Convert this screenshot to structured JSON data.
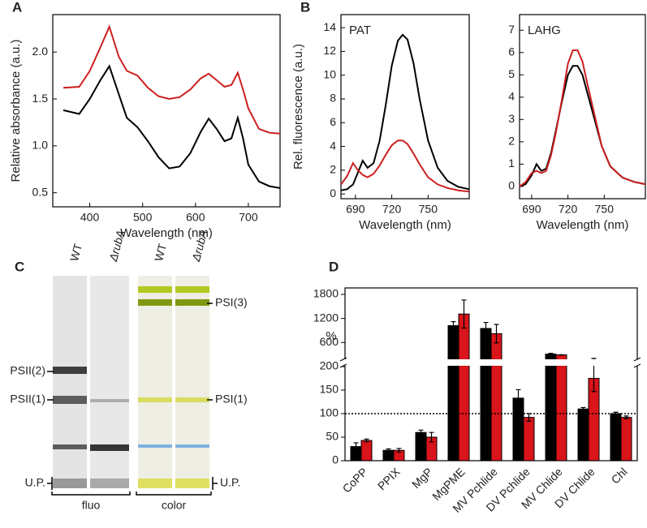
{
  "chart_data": [
    {
      "type": "line",
      "panel_label": "A",
      "x_label": "Wavelength (nm)",
      "y_label": "Relative absorbance (a.u.)",
      "x": [
        350,
        380,
        400,
        420,
        437,
        455,
        470,
        490,
        510,
        530,
        550,
        570,
        590,
        610,
        625,
        640,
        655,
        668,
        680,
        690,
        700,
        720,
        740,
        760
      ],
      "series": [
        {
          "color": "#000000",
          "values": [
            1.38,
            1.34,
            1.5,
            1.7,
            1.85,
            1.55,
            1.3,
            1.2,
            1.05,
            0.88,
            0.76,
            0.78,
            0.92,
            1.15,
            1.29,
            1.18,
            1.05,
            1.08,
            1.3,
            1.08,
            0.8,
            0.62,
            0.57,
            0.55
          ]
        },
        {
          "color": "#cc1f1f",
          "values": [
            1.62,
            1.63,
            1.8,
            2.05,
            2.27,
            1.95,
            1.8,
            1.75,
            1.62,
            1.53,
            1.5,
            1.52,
            1.6,
            1.72,
            1.77,
            1.7,
            1.63,
            1.65,
            1.78,
            1.6,
            1.4,
            1.18,
            1.14,
            1.13
          ]
        }
      ],
      "xlim": [
        330,
        760
      ],
      "xticks": [
        400,
        500,
        600,
        700
      ],
      "ylim": [
        0.35,
        2.4
      ],
      "yticks": [
        0.5,
        {
          "value": 1,
          "label": "1.0"
        },
        1.5,
        {
          "value": 2,
          "label": "2.0"
        }
      ]
    },
    {
      "type": "line",
      "panel_label": "B",
      "annotation": "PAT",
      "x_label": "Wavelength (nm)",
      "y_label": "Rel. fluorescence (a.u.)",
      "x": [
        678,
        683,
        688,
        692,
        696,
        700,
        705,
        710,
        715,
        720,
        725,
        729,
        733,
        738,
        743,
        750,
        758,
        766,
        775,
        784
      ],
      "series": [
        {
          "color": "#000000",
          "values": [
            0.3,
            0.4,
            0.8,
            1.8,
            2.8,
            2.2,
            2.6,
            4.5,
            7.5,
            10.8,
            12.9,
            13.4,
            13,
            11,
            8,
            4.5,
            2.2,
            1.1,
            0.6,
            0.4
          ]
        },
        {
          "color": "#cc1f1f",
          "values": [
            0.8,
            1.5,
            2.6,
            2.0,
            1.6,
            1.4,
            1.7,
            2.4,
            3.3,
            4.1,
            4.5,
            4.5,
            4.2,
            3.4,
            2.5,
            1.4,
            0.8,
            0.5,
            0.3,
            0.2
          ]
        }
      ],
      "xlim": [
        678,
        784
      ],
      "xticks": [
        690,
        720,
        750
      ],
      "ylim": [
        -0.4,
        15.1
      ],
      "yticks": [
        0,
        2,
        4,
        6,
        8,
        10,
        12,
        14
      ]
    },
    {
      "type": "line",
      "annotation": "LAHG",
      "x_label": "Wavelength (nm)",
      "x": [
        680,
        685,
        690,
        694,
        698,
        702,
        706,
        710,
        715,
        720,
        724,
        728,
        732,
        736,
        742,
        748,
        755,
        765,
        775,
        784
      ],
      "series": [
        {
          "color": "#000000",
          "values": [
            0,
            0.1,
            0.5,
            1.0,
            0.7,
            0.8,
            1.5,
            2.5,
            3.8,
            5.0,
            5.4,
            5.4,
            5.0,
            4.2,
            3.0,
            1.8,
            0.9,
            0.4,
            0.2,
            0.1
          ]
        },
        {
          "color": "#cc1f1f",
          "values": [
            0,
            0.2,
            0.6,
            0.7,
            0.6,
            0.7,
            1.4,
            2.4,
            3.9,
            5.5,
            6.1,
            6.1,
            5.6,
            4.6,
            3.2,
            1.8,
            0.9,
            0.4,
            0.2,
            0.1
          ]
        }
      ],
      "xlim": [
        680,
        784
      ],
      "xticks": [
        690,
        720,
        750
      ],
      "ylim": [
        -0.55,
        7.7
      ],
      "yticks": [
        0,
        1,
        2,
        3,
        4,
        5,
        6,
        7
      ]
    },
    {
      "type": "bar",
      "panel_label": "D",
      "y_label": "%",
      "categories": [
        "CoPP",
        "PPIX",
        "MgP",
        "MgPME",
        "MV Pchlide",
        "DV Pchlide",
        "MV Chlide",
        "DV Chlide",
        "Chl"
      ],
      "series": [
        {
          "color": "#000000",
          "values": [
            30,
            22,
            60,
            1020,
            950,
            133,
            310,
            110,
            100
          ],
          "errors": [
            8,
            3,
            5,
            100,
            150,
            18,
            20,
            3,
            3
          ]
        },
        {
          "color": "#d9141a",
          "values": [
            43,
            22,
            50,
            1310,
            820,
            92,
            290,
            175,
            92
          ],
          "errors": [
            3,
            4,
            10,
            350,
            230,
            8,
            5,
            28,
            3
          ]
        }
      ],
      "ylim": [
        0,
        1800
      ],
      "ybreak": 200,
      "yticks": [
        0,
        50,
        100,
        150,
        200,
        600,
        1200,
        1800
      ],
      "reference_line": 100
    }
  ],
  "gel": {
    "panel_label": "C",
    "lanes": [
      "WT",
      "ΔrubA",
      "WT",
      "ΔrubA"
    ],
    "left_labels": [
      "PSII(2)",
      "PSII(1)",
      "U.P."
    ],
    "right_labels": [
      "PSI(3)",
      "PSI(1)",
      "U.P."
    ],
    "groups": [
      "fluo",
      "color"
    ]
  }
}
